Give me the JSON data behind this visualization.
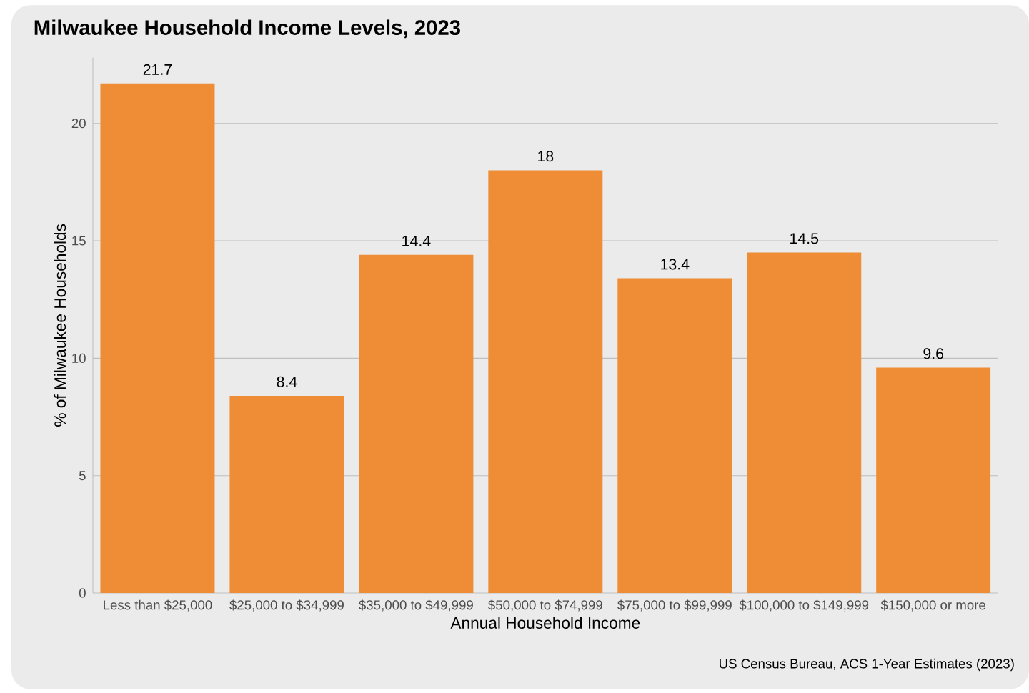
{
  "chart_data": {
    "type": "bar",
    "title": "Milwaukee Household Income Levels, 2023",
    "xlabel": "Annual Household Income",
    "ylabel": "% of Milwaukee Households",
    "categories": [
      "Less than $25,000",
      "$25,000 to $34,999",
      "$35,000 to $49,999",
      "$50,000 to $74,999",
      "$75,000 to $99,999",
      "$100,000 to $149,999",
      "$150,000 or more"
    ],
    "values": [
      21.7,
      8.4,
      14.4,
      18,
      13.4,
      14.5,
      9.6
    ],
    "color": "#ee8d36",
    "ylim": [
      0,
      22.8
    ],
    "yticks": [
      0,
      5,
      10,
      15,
      20
    ],
    "grid": "y",
    "data_labels": true,
    "annotations": [
      "US Census Bureau, ACS 1-Year Estimates (2023)"
    ]
  }
}
